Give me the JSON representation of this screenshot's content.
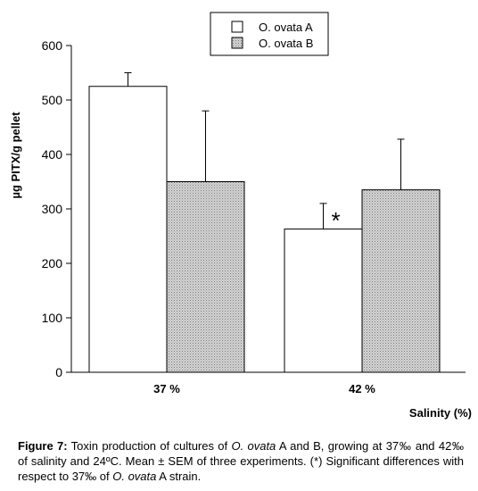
{
  "chart_data": {
    "type": "bar",
    "title": "",
    "xlabel": "Salinity (%)",
    "ylabel": "µg PITX/g pellet",
    "ylim": [
      0,
      600
    ],
    "yticks": [
      0,
      100,
      200,
      300,
      400,
      500,
      600
    ],
    "categories": [
      "37 %",
      "42 %"
    ],
    "series": [
      {
        "name": "O. ovata A",
        "values": [
          525,
          263
        ],
        "errors": [
          25,
          47
        ],
        "fill": "white"
      },
      {
        "name": "O. ovata B",
        "values": [
          350,
          335
        ],
        "errors": [
          130,
          93
        ],
        "fill": "hatched"
      }
    ],
    "annotations": [
      {
        "text": "*",
        "category": "42 %",
        "series": "O. ovata A"
      }
    ],
    "legend": {
      "position": "top-center",
      "boxed": true
    },
    "grid": false
  },
  "caption": {
    "label": "Figure 7:",
    "t1": " Toxin production of cultures of ",
    "i1": "O. ovata",
    "t2": " A and B, growing at 37‰ and 42‰ of salinity and 24ºC. Mean ± SEM of three experiments. (*) Significant differences with respect to 37‰ of ",
    "i2": "O. ovata",
    "t3": " A strain."
  },
  "colors": {
    "ink": "#000000",
    "bar_a": "#ffffff",
    "bar_b_pattern": "#8a8a8a",
    "axis": "#000000"
  }
}
